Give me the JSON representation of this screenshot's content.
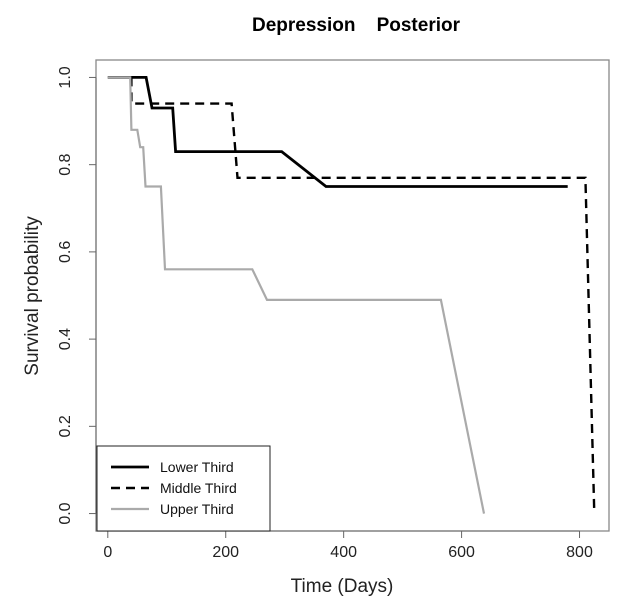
{
  "chart_data": {
    "type": "line",
    "step": true,
    "title": "Depression    Posterior",
    "xlabel": "Time (Days)",
    "ylabel": "Survival probability",
    "xlim": [
      -20,
      850
    ],
    "ylim": [
      -0.04,
      1.04
    ],
    "xticks": [
      0,
      200,
      400,
      600,
      800
    ],
    "xtick_labels": [
      "0",
      "200",
      "400",
      "600",
      "800"
    ],
    "yticks": [
      0.0,
      0.2,
      0.4,
      0.6,
      0.8,
      1.0
    ],
    "ytick_labels": [
      "0.0",
      "0.2",
      "0.4",
      "0.6",
      "0.8",
      "1.0"
    ],
    "grid": false,
    "legend_position": "bottom-left",
    "series": [
      {
        "name": "Lower Third",
        "color": "#000000",
        "dash": "solid",
        "points": [
          [
            0,
            1.0
          ],
          [
            40,
            1.0
          ],
          [
            40,
            1.0
          ],
          [
            65,
            1.0
          ],
          [
            75,
            0.93
          ],
          [
            95,
            0.93
          ],
          [
            110,
            0.93
          ],
          [
            115,
            0.83
          ],
          [
            295,
            0.83
          ],
          [
            370,
            0.75
          ],
          [
            780,
            0.75
          ]
        ]
      },
      {
        "name": "Middle Third",
        "color": "#000000",
        "dash": "dashed",
        "points": [
          [
            40,
            1.0
          ],
          [
            40,
            0.94
          ],
          [
            210,
            0.94
          ],
          [
            220,
            0.77
          ],
          [
            810,
            0.77
          ],
          [
            825,
            0.0
          ]
        ]
      },
      {
        "name": "Upper Third",
        "color": "#aaaaaa",
        "dash": "solid",
        "points": [
          [
            0,
            1.0
          ],
          [
            38,
            1.0
          ],
          [
            40,
            0.88
          ],
          [
            50,
            0.88
          ],
          [
            55,
            0.84
          ],
          [
            60,
            0.84
          ],
          [
            64,
            0.75
          ],
          [
            90,
            0.75
          ],
          [
            97,
            0.56
          ],
          [
            245,
            0.56
          ],
          [
            270,
            0.49
          ],
          [
            565,
            0.49
          ],
          [
            638,
            0.0
          ]
        ]
      }
    ]
  }
}
